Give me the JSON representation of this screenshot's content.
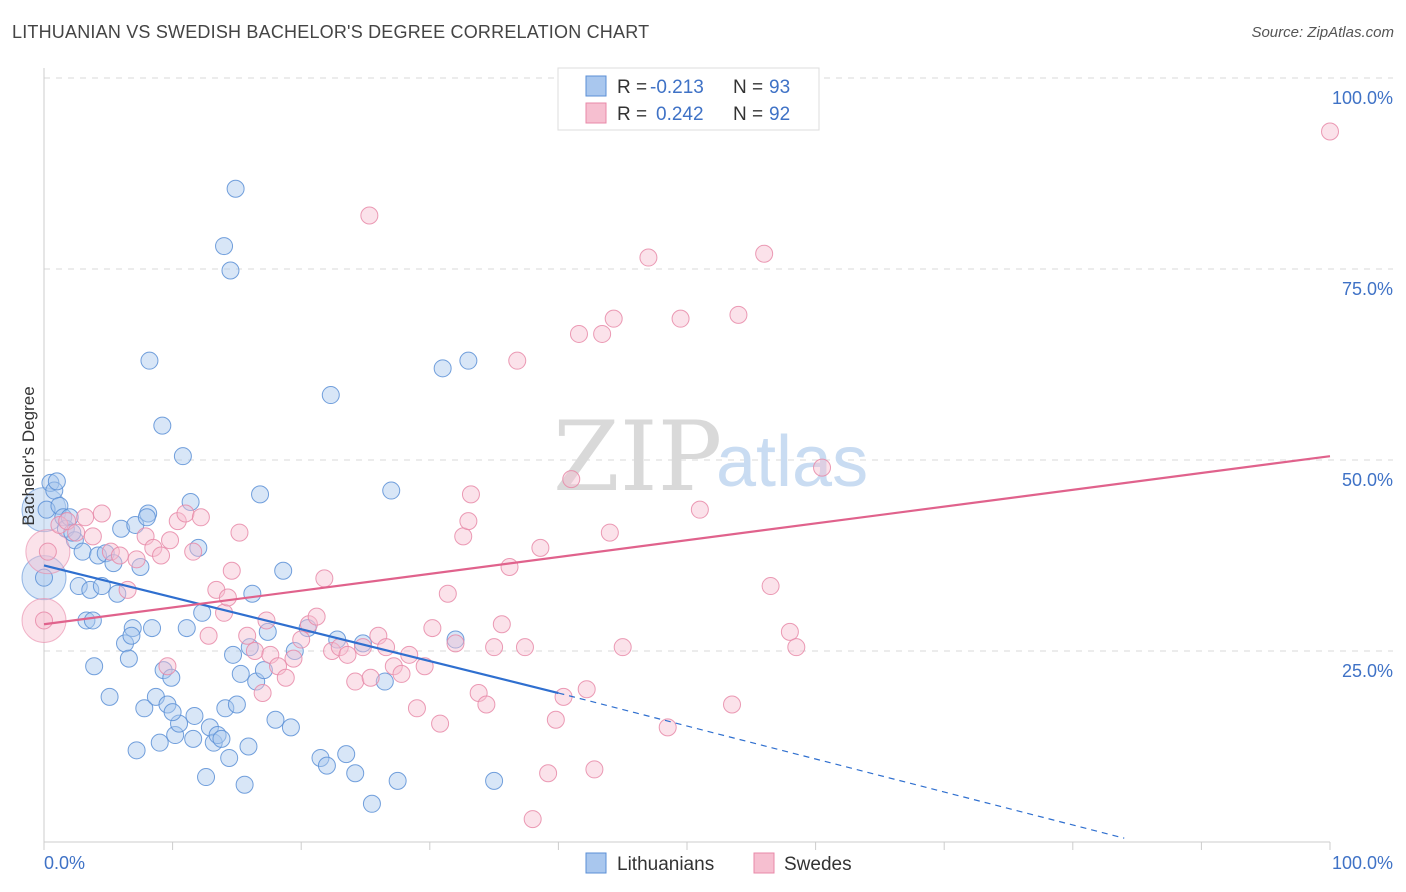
{
  "title": "LITHUANIAN VS SWEDISH BACHELOR'S DEGREE CORRELATION CHART",
  "source": "Source: ZipAtlas.com",
  "watermark": {
    "zip": "ZIP",
    "atlas": "atlas"
  },
  "colors": {
    "blue": "#5b8fd6",
    "blue_fill": "#a9c7ee",
    "blue_line": "#2f6fcf",
    "pink": "#e889a8",
    "pink_fill": "#f6bfd0",
    "pink_line": "#e0628c",
    "grid": "#d9d9d9",
    "tick_text": "#3f72c6"
  },
  "legend": {
    "rows": [
      {
        "r_label": "R =",
        "r_value": "-0.213",
        "n_label": "N =",
        "n_value": "93"
      },
      {
        "r_label": "R =",
        "r_value": "0.242",
        "n_label": "N =",
        "n_value": "92"
      }
    ]
  },
  "chart_data": {
    "type": "scatter",
    "title": "LITHUANIAN VS SWEDISH BACHELOR'S DEGREE CORRELATION CHART",
    "xlabel": "",
    "ylabel": "Bachelor's Degree",
    "xlim": [
      0,
      100
    ],
    "ylim": [
      0,
      100
    ],
    "x_tick_labels": [
      "0.0%",
      "100.0%"
    ],
    "y_tick_labels": [
      "25.0%",
      "50.0%",
      "75.0%",
      "100.0%"
    ],
    "y_ticks": [
      25,
      50,
      75,
      100
    ],
    "grid": true,
    "legend_position": "bottom",
    "series": [
      {
        "name": "Lithuanians",
        "r": -0.213,
        "n": 93,
        "trend": {
          "x": [
            0,
            40
          ],
          "y": [
            36.2,
            19.5
          ],
          "dashed_to": [
            84,
            0.5
          ]
        },
        "points": [
          [
            0.0,
            34.6
          ],
          [
            0.2,
            43.5
          ],
          [
            0.5,
            47.0
          ],
          [
            0.8,
            46.0
          ],
          [
            1.0,
            47.2
          ],
          [
            1.2,
            44.0
          ],
          [
            1.5,
            42.5
          ],
          [
            1.7,
            41.0
          ],
          [
            2.0,
            42.5
          ],
          [
            2.4,
            39.5
          ],
          [
            2.7,
            33.5
          ],
          [
            3.0,
            38.0
          ],
          [
            3.3,
            29.0
          ],
          [
            3.6,
            33.0
          ],
          [
            3.9,
            23.0
          ],
          [
            4.2,
            37.5
          ],
          [
            4.5,
            33.5
          ],
          [
            4.8,
            37.8
          ],
          [
            5.1,
            19.0
          ],
          [
            5.4,
            36.5
          ],
          [
            5.7,
            32.5
          ],
          [
            6.0,
            41.0
          ],
          [
            6.3,
            26.0
          ],
          [
            6.6,
            24.0
          ],
          [
            6.9,
            28.0
          ],
          [
            7.2,
            12.0
          ],
          [
            7.5,
            36.0
          ],
          [
            7.1,
            41.5
          ],
          [
            7.8,
            17.5
          ],
          [
            8.1,
            43.0
          ],
          [
            8.4,
            28.0
          ],
          [
            8.7,
            19.0
          ],
          [
            9.0,
            13.0
          ],
          [
            9.3,
            22.5
          ],
          [
            9.6,
            18.0
          ],
          [
            9.9,
            21.5
          ],
          [
            10.2,
            14.0
          ],
          [
            10.5,
            15.5
          ],
          [
            10.8,
            50.5
          ],
          [
            11.1,
            28.0
          ],
          [
            11.4,
            44.5
          ],
          [
            11.7,
            16.5
          ],
          [
            12.0,
            38.5
          ],
          [
            12.3,
            30.0
          ],
          [
            12.6,
            8.5
          ],
          [
            12.9,
            15.0
          ],
          [
            13.2,
            13.0
          ],
          [
            13.5,
            14.0
          ],
          [
            13.8,
            13.5
          ],
          [
            14.1,
            17.5
          ],
          [
            14.4,
            11.0
          ],
          [
            14.7,
            24.5
          ],
          [
            15.0,
            18.0
          ],
          [
            15.3,
            22.0
          ],
          [
            14.0,
            78.0
          ],
          [
            14.5,
            74.8
          ],
          [
            14.9,
            85.5
          ],
          [
            8.2,
            63.0
          ],
          [
            9.2,
            54.5
          ],
          [
            8.0,
            42.5
          ],
          [
            15.6,
            7.5
          ],
          [
            15.9,
            12.5
          ],
          [
            16.2,
            32.5
          ],
          [
            16.5,
            21.0
          ],
          [
            16.8,
            45.5
          ],
          [
            17.1,
            22.5
          ],
          [
            17.4,
            27.5
          ],
          [
            18.0,
            16.0
          ],
          [
            18.6,
            35.5
          ],
          [
            19.2,
            15.0
          ],
          [
            20.5,
            28.0
          ],
          [
            21.5,
            11.0
          ],
          [
            22.0,
            10.0
          ],
          [
            22.8,
            26.5
          ],
          [
            23.5,
            11.5
          ],
          [
            24.2,
            9.0
          ],
          [
            24.8,
            26.0
          ],
          [
            25.5,
            5.0
          ],
          [
            26.5,
            21.0
          ],
          [
            27.5,
            8.0
          ],
          [
            22.3,
            58.5
          ],
          [
            27.0,
            46.0
          ],
          [
            31.0,
            62.0
          ],
          [
            32.0,
            26.5
          ],
          [
            33.0,
            63.0
          ],
          [
            35.0,
            8.0
          ],
          [
            16.0,
            25.5
          ],
          [
            19.5,
            25.0
          ],
          [
            2.2,
            40.5
          ],
          [
            3.8,
            29.0
          ],
          [
            10.0,
            17.0
          ],
          [
            11.6,
            13.5
          ],
          [
            6.8,
            27.0
          ]
        ],
        "big_points": [
          [
            0.0,
            34.6
          ],
          [
            0.0,
            43.5
          ]
        ]
      },
      {
        "name": "Swedes",
        "r": 0.242,
        "n": 92,
        "trend": {
          "x": [
            0,
            100
          ],
          "y": [
            28.5,
            50.5
          ]
        },
        "points": [
          [
            0.0,
            29.0
          ],
          [
            0.3,
            38.0
          ],
          [
            1.2,
            41.5
          ],
          [
            1.8,
            42.0
          ],
          [
            2.5,
            40.5
          ],
          [
            3.2,
            42.5
          ],
          [
            3.8,
            40.0
          ],
          [
            4.5,
            43.0
          ],
          [
            5.2,
            38.0
          ],
          [
            5.9,
            37.5
          ],
          [
            6.5,
            33.0
          ],
          [
            7.2,
            37.0
          ],
          [
            7.9,
            40.0
          ],
          [
            8.5,
            38.5
          ],
          [
            9.1,
            37.5
          ],
          [
            9.8,
            39.5
          ],
          [
            10.4,
            42.0
          ],
          [
            11.0,
            43.0
          ],
          [
            11.6,
            38.0
          ],
          [
            12.2,
            42.5
          ],
          [
            12.8,
            27.0
          ],
          [
            13.4,
            33.0
          ],
          [
            14.0,
            30.0
          ],
          [
            14.6,
            35.5
          ],
          [
            15.2,
            40.5
          ],
          [
            15.8,
            27.0
          ],
          [
            16.4,
            25.0
          ],
          [
            17.0,
            19.5
          ],
          [
            17.6,
            24.5
          ],
          [
            18.2,
            23.0
          ],
          [
            18.8,
            21.5
          ],
          [
            19.4,
            24.0
          ],
          [
            20.0,
            26.5
          ],
          [
            20.6,
            28.5
          ],
          [
            21.2,
            29.5
          ],
          [
            21.8,
            34.5
          ],
          [
            22.4,
            25.0
          ],
          [
            23.0,
            25.5
          ],
          [
            23.6,
            24.5
          ],
          [
            24.2,
            21.0
          ],
          [
            24.8,
            25.5
          ],
          [
            25.4,
            21.5
          ],
          [
            26.0,
            27.0
          ],
          [
            26.6,
            25.5
          ],
          [
            27.2,
            23.0
          ],
          [
            27.8,
            22.0
          ],
          [
            28.4,
            24.5
          ],
          [
            29.0,
            17.5
          ],
          [
            29.6,
            23.0
          ],
          [
            30.2,
            28.0
          ],
          [
            30.8,
            15.5
          ],
          [
            31.4,
            32.5
          ],
          [
            32.0,
            26.0
          ],
          [
            32.6,
            40.0
          ],
          [
            33.2,
            45.5
          ],
          [
            33.8,
            19.5
          ],
          [
            34.4,
            18.0
          ],
          [
            35.0,
            25.5
          ],
          [
            35.6,
            28.5
          ],
          [
            36.2,
            36.0
          ],
          [
            36.8,
            63.0
          ],
          [
            37.4,
            25.5
          ],
          [
            38.0,
            3.0
          ],
          [
            38.6,
            38.5
          ],
          [
            39.2,
            9.0
          ],
          [
            39.8,
            16.0
          ],
          [
            40.4,
            19.0
          ],
          [
            41.0,
            47.5
          ],
          [
            41.6,
            66.5
          ],
          [
            42.2,
            20.0
          ],
          [
            42.8,
            9.5
          ],
          [
            43.4,
            66.5
          ],
          [
            44.0,
            40.5
          ],
          [
            45.0,
            25.5
          ],
          [
            47.0,
            76.5
          ],
          [
            48.5,
            15.0
          ],
          [
            49.5,
            68.5
          ],
          [
            51.0,
            43.5
          ],
          [
            53.5,
            18.0
          ],
          [
            54.0,
            69.0
          ],
          [
            56.0,
            77.0
          ],
          [
            56.5,
            33.5
          ],
          [
            58.0,
            27.5
          ],
          [
            58.5,
            25.5
          ],
          [
            60.5,
            49.0
          ],
          [
            25.3,
            82.0
          ],
          [
            33.0,
            42.0
          ],
          [
            9.6,
            23.0
          ],
          [
            14.3,
            32.0
          ],
          [
            17.3,
            29.0
          ],
          [
            100.0,
            93.0
          ],
          [
            44.3,
            68.5
          ]
        ],
        "big_points": [
          [
            0.0,
            29.0
          ],
          [
            0.3,
            38.0
          ]
        ]
      }
    ]
  },
  "bottom_legend": [
    {
      "label": "Lithuanians"
    },
    {
      "label": "Swedes"
    }
  ]
}
